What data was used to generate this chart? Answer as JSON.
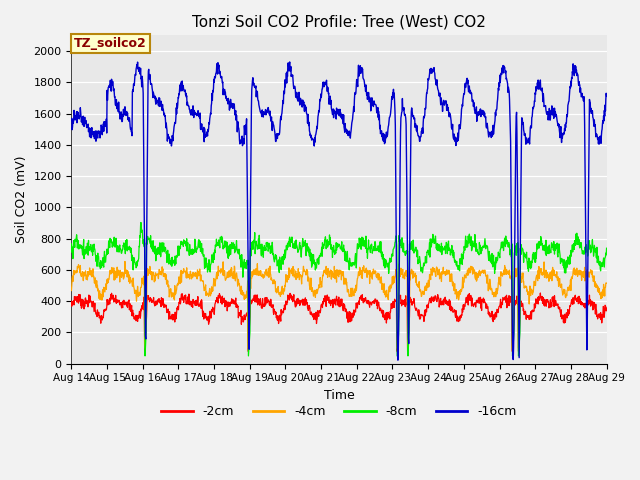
{
  "title": "Tonzi Soil CO2 Profile: Tree (West) CO2",
  "xlabel": "Time",
  "ylabel": "Soil CO2 (mV)",
  "legend_label": "TZ_soilco2",
  "ylim": [
    0,
    2100
  ],
  "yticks": [
    0,
    200,
    400,
    600,
    800,
    1000,
    1200,
    1400,
    1600,
    1800,
    2000
  ],
  "xtick_labels": [
    "Aug 14",
    "Aug 15",
    "Aug 16",
    "Aug 17",
    "Aug 18",
    "Aug 19",
    "Aug 20",
    "Aug 21",
    "Aug 22",
    "Aug 23",
    "Aug 24",
    "Aug 25",
    "Aug 26",
    "Aug 27",
    "Aug 28",
    "Aug 29"
  ],
  "colors": {
    "red": "#FF0000",
    "orange": "#FFA500",
    "green": "#00EE00",
    "blue": "#0000CC"
  },
  "line_labels": [
    "-2cm",
    "-4cm",
    "-8cm",
    "-16cm"
  ],
  "bg_color": "#E8E8E8",
  "fig_bg": "#F2F2F2",
  "title_fontsize": 11,
  "axis_fontsize": 9,
  "tick_fontsize": 8,
  "legend_fontsize": 9,
  "blue_dip_days": [
    2.08,
    4.98,
    9.15,
    9.45,
    12.38,
    12.55,
    14.45
  ],
  "red_dip_days": [
    2.08,
    4.98,
    9.15,
    9.45,
    12.38,
    12.55
  ],
  "green_dip_days": [
    2.08,
    4.98,
    9.15,
    9.45,
    12.38,
    12.55
  ],
  "orange_dip_days": [
    2.08,
    4.98,
    9.15,
    9.45,
    12.38,
    12.55
  ]
}
